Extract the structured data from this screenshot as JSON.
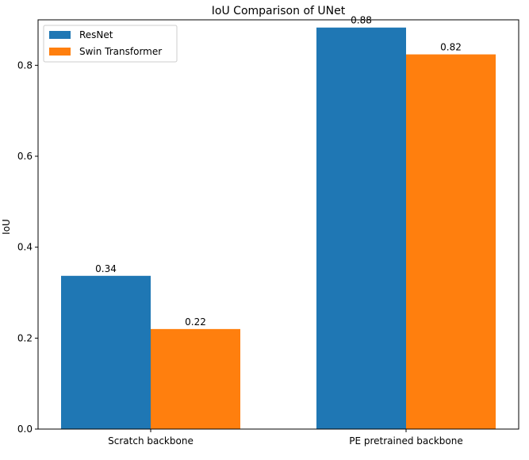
{
  "chart_data": {
    "type": "bar",
    "title": "IoU Comparison of UNet",
    "xlabel": "",
    "ylabel": "IoU",
    "categories": [
      "Scratch backbone",
      "PE pretrained backbone"
    ],
    "series": [
      {
        "name": "ResNet",
        "values": [
          0.337,
          0.883
        ],
        "labels": [
          "0.34",
          "0.88"
        ],
        "color": "#1f77b4"
      },
      {
        "name": "Swin Transformer",
        "values": [
          0.22,
          0.824
        ],
        "labels": [
          "0.22",
          "0.82"
        ],
        "color": "#ff7f0e"
      }
    ],
    "ylim": [
      0,
      0.9
    ],
    "yticks": [
      0.0,
      0.2,
      0.4,
      0.6,
      0.8
    ],
    "ytick_labels": [
      "0.0",
      "0.2",
      "0.4",
      "0.6",
      "0.8"
    ],
    "grid": false,
    "legend_position": "top-left"
  }
}
